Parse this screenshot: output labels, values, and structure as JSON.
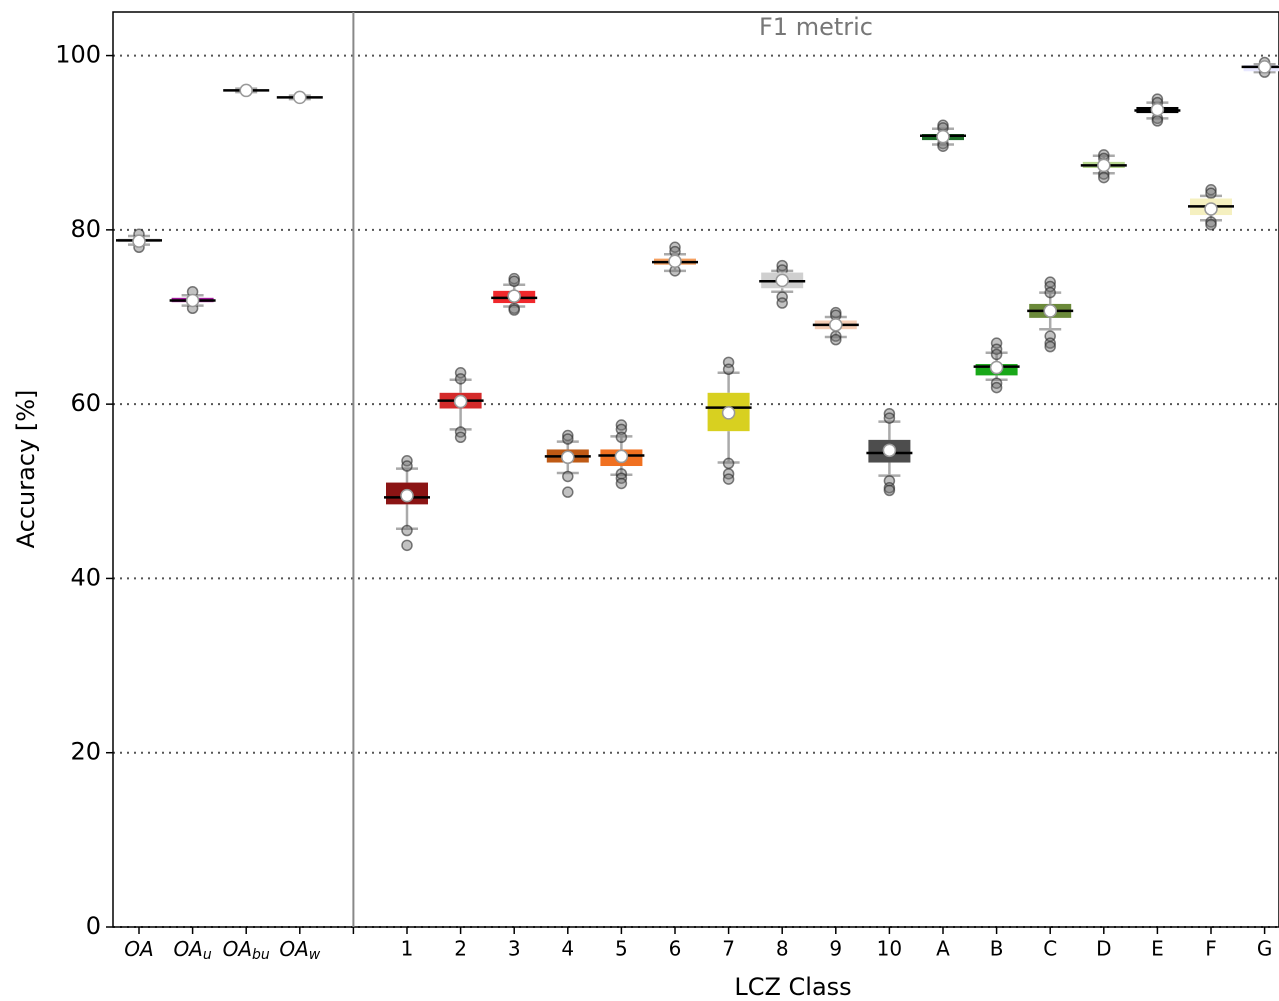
{
  "chart_data": {
    "type": "box",
    "title": "F1 metric",
    "x_label": "LCZ Class",
    "y_label": "Accuracy [%]",
    "ylim": [
      0,
      105
    ],
    "yticks": [
      0,
      20,
      40,
      60,
      80,
      100
    ],
    "grid": true,
    "categories": [
      {
        "label": "OA"
      },
      {
        "label": "OA",
        "subscript": "u"
      },
      {
        "label": "OA",
        "subscript": "bu"
      },
      {
        "label": "OA",
        "subscript": "w"
      },
      null,
      "1",
      "2",
      "3",
      "4",
      "5",
      "6",
      "7",
      "8",
      "9",
      "10",
      "A",
      "B",
      "C",
      "D",
      "E",
      "F",
      "G"
    ],
    "boxes": [
      {
        "q1": 78.6,
        "median": 78.8,
        "q3": 79.0,
        "whislo": 78.3,
        "whishi": 79.3,
        "mean": 78.7,
        "fliers": [
          78.0,
          79.5
        ],
        "color": "#d9d9d9"
      },
      {
        "q1": 71.7,
        "median": 71.9,
        "q3": 72.2,
        "whislo": 71.3,
        "whishi": 72.5,
        "mean": 71.9,
        "fliers": [
          71.0,
          72.9
        ],
        "color": "#a0199a"
      },
      {
        "q1": 95.9,
        "median": 96.0,
        "q3": 96.1,
        "whislo": 95.8,
        "whishi": 96.2,
        "mean": 96.0,
        "fliers": [],
        "color": "#d9d9d9"
      },
      {
        "q1": 95.1,
        "median": 95.2,
        "q3": 95.3,
        "whislo": 95.0,
        "whishi": 95.4,
        "mean": 95.2,
        "fliers": [],
        "color": "#d9d9d9"
      },
      null,
      {
        "q1": 48.5,
        "median": 49.3,
        "q3": 51.0,
        "whislo": 45.7,
        "whishi": 52.6,
        "mean": 49.5,
        "fliers": [
          53.5,
          52.9,
          45.5,
          43.8
        ],
        "color": "#8b1414"
      },
      {
        "q1": 59.5,
        "median": 60.4,
        "q3": 61.3,
        "whislo": 57.1,
        "whishi": 62.8,
        "mean": 60.3,
        "fliers": [
          63.6,
          62.9,
          56.8,
          56.2
        ],
        "color": "#d42a2a"
      },
      {
        "q1": 71.6,
        "median": 72.2,
        "q3": 73.0,
        "whislo": 71.2,
        "whishi": 73.7,
        "mean": 72.4,
        "fliers": [
          74.4,
          74.1,
          71.0,
          70.8
        ],
        "color": "#f0282c"
      },
      {
        "q1": 53.3,
        "median": 54.0,
        "q3": 54.8,
        "whislo": 52.1,
        "whishi": 55.7,
        "mean": 53.9,
        "fliers": [
          56.4,
          56.0,
          51.7,
          49.9
        ],
        "color": "#bf5a15"
      },
      {
        "q1": 52.9,
        "median": 54.1,
        "q3": 54.8,
        "whislo": 51.9,
        "whishi": 56.3,
        "mean": 54.0,
        "fliers": [
          57.6,
          57.1,
          56.2,
          52.0,
          51.5,
          50.9
        ],
        "color": "#f07020"
      },
      {
        "q1": 76.0,
        "median": 76.3,
        "q3": 76.7,
        "whislo": 75.3,
        "whishi": 77.2,
        "mean": 76.4,
        "fliers": [
          78.0,
          77.5,
          75.3
        ],
        "color": "#f5a060"
      },
      {
        "q1": 56.9,
        "median": 59.6,
        "q3": 61.3,
        "whislo": 53.3,
        "whishi": 63.6,
        "mean": 59.0,
        "fliers": [
          64.8,
          64.0,
          53.2,
          52.0,
          51.4
        ],
        "color": "#d8d020"
      },
      {
        "q1": 73.3,
        "median": 74.1,
        "q3": 75.1,
        "whislo": 72.9,
        "whishi": 75.3,
        "mean": 74.2,
        "fliers": [
          75.9,
          75.4,
          72.3,
          71.6
        ],
        "color": "#cfcfcf"
      },
      {
        "q1": 68.6,
        "median": 69.1,
        "q3": 69.6,
        "whislo": 67.7,
        "whishi": 70.0,
        "mean": 69.1,
        "fliers": [
          70.5,
          70.2,
          67.8,
          67.4
        ],
        "color": "#f5cdb5"
      },
      {
        "q1": 53.3,
        "median": 54.4,
        "q3": 55.9,
        "whislo": 51.8,
        "whishi": 58.0,
        "mean": 54.7,
        "fliers": [
          58.9,
          58.4,
          51.2,
          50.4,
          50.1
        ],
        "color": "#4d4d4d"
      },
      {
        "q1": 90.3,
        "median": 90.8,
        "q3": 91.0,
        "whislo": 89.8,
        "whishi": 91.6,
        "mean": 90.7,
        "fliers": [
          92.0,
          91.7,
          89.9,
          89.6
        ],
        "color": "#1e6e28"
      },
      {
        "q1": 63.3,
        "median": 64.3,
        "q3": 64.6,
        "whislo": 62.8,
        "whishi": 65.9,
        "mean": 64.2,
        "fliers": [
          67.0,
          66.3,
          65.7,
          62.4,
          61.9
        ],
        "color": "#19a819"
      },
      {
        "q1": 69.9,
        "median": 70.7,
        "q3": 71.5,
        "whislo": 68.6,
        "whishi": 72.8,
        "mean": 70.7,
        "fliers": [
          74.0,
          73.5,
          72.8,
          67.8,
          67.0,
          66.6
        ],
        "color": "#6b8a3a"
      },
      {
        "q1": 87.1,
        "median": 87.4,
        "q3": 87.8,
        "whislo": 86.5,
        "whishi": 88.5,
        "mean": 87.4,
        "fliers": [
          88.6,
          88.2,
          86.4,
          86.0
        ],
        "color": "#b8d890"
      },
      {
        "q1": 93.4,
        "median": 93.7,
        "q3": 94.1,
        "whislo": 92.8,
        "whishi": 94.6,
        "mean": 93.8,
        "fliers": [
          95.0,
          94.6,
          92.8,
          92.5
        ],
        "color": "#000000"
      },
      {
        "q1": 81.7,
        "median": 82.7,
        "q3": 83.6,
        "whislo": 81.1,
        "whishi": 83.9,
        "mean": 82.4,
        "fliers": [
          84.6,
          84.2,
          80.9,
          80.6
        ],
        "color": "#f5f0c0"
      },
      {
        "q1": 98.2,
        "median": 98.7,
        "q3": 98.9,
        "whislo": 98.1,
        "whishi": 99.0,
        "mean": 98.7,
        "fliers": [
          99.2,
          98.1
        ],
        "color": "#e8e8ff"
      }
    ]
  }
}
